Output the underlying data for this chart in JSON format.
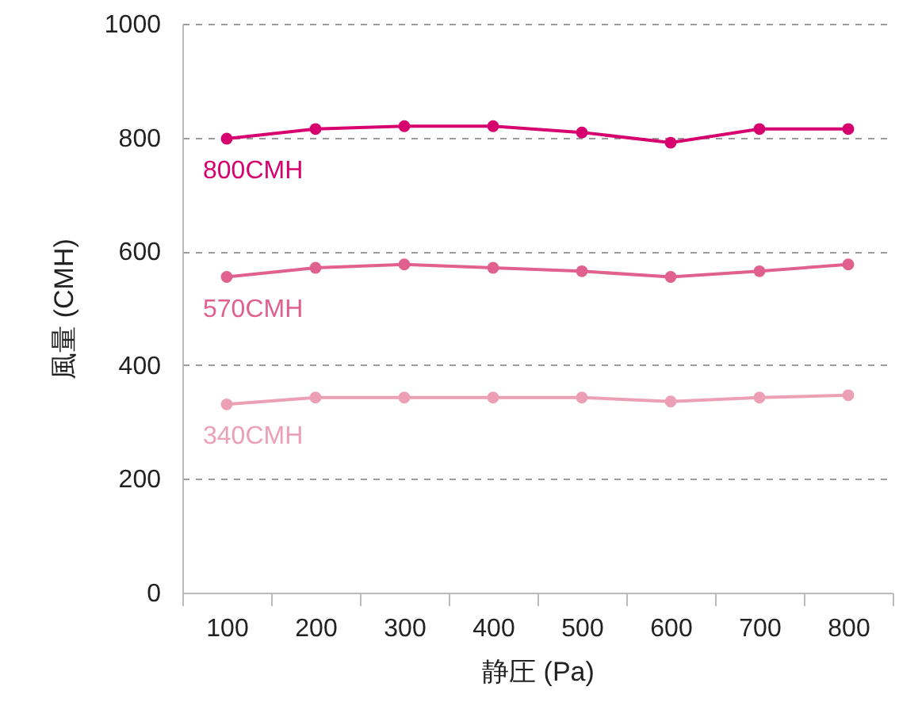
{
  "chart_data": {
    "type": "line",
    "xlabel": "静圧 (Pa)",
    "ylabel": "風量 (CMH)",
    "categories": [
      "100",
      "200",
      "300",
      "400",
      "500",
      "600",
      "700",
      "800"
    ],
    "ylim": [
      0,
      1000
    ],
    "yticks": [
      0,
      200,
      400,
      600,
      800,
      1000
    ],
    "grid": "y",
    "marker": "circle",
    "line_style": "solid",
    "series": [
      {
        "name": "800CMH",
        "color": "#d6006f",
        "values": [
          798,
          815,
          820,
          820,
          809,
          791,
          815,
          815
        ]
      },
      {
        "name": "570CMH",
        "color": "#e0608e",
        "values": [
          555,
          571,
          577,
          571,
          565,
          555,
          565,
          577
        ]
      },
      {
        "name": "340CMH",
        "color": "#eba0b5",
        "values": [
          331,
          343,
          343,
          343,
          343,
          336,
          343,
          347
        ]
      }
    ]
  }
}
